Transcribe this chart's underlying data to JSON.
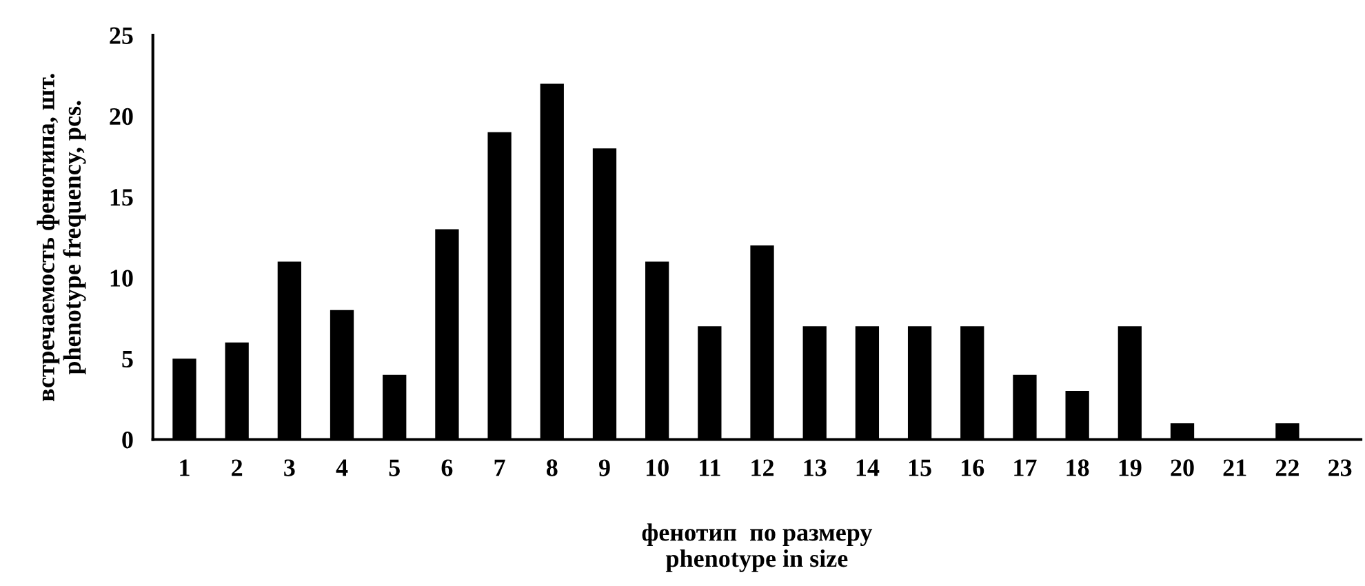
{
  "chart_data": {
    "type": "bar",
    "xlabel": "фенотип  по размеру\nphenotype in size",
    "ylabel": "встречаемость фенотипа, шт.\nphenotype frequency, pcs.",
    "categories": [
      "1",
      "2",
      "3",
      "4",
      "5",
      "6",
      "7",
      "8",
      "9",
      "10",
      "11",
      "12",
      "13",
      "14",
      "15",
      "16",
      "17",
      "18",
      "19",
      "20",
      "21",
      "22",
      "23"
    ],
    "values": [
      5,
      6,
      11,
      8,
      4,
      13,
      19,
      22,
      18,
      11,
      7,
      12,
      7,
      7,
      7,
      7,
      4,
      3,
      7,
      1,
      0,
      1,
      0
    ],
    "color": "#000000",
    "ylim": [
      0,
      25
    ],
    "yticks": [
      0,
      5,
      10,
      15,
      20,
      25
    ],
    "grid": false,
    "legend": false
  }
}
